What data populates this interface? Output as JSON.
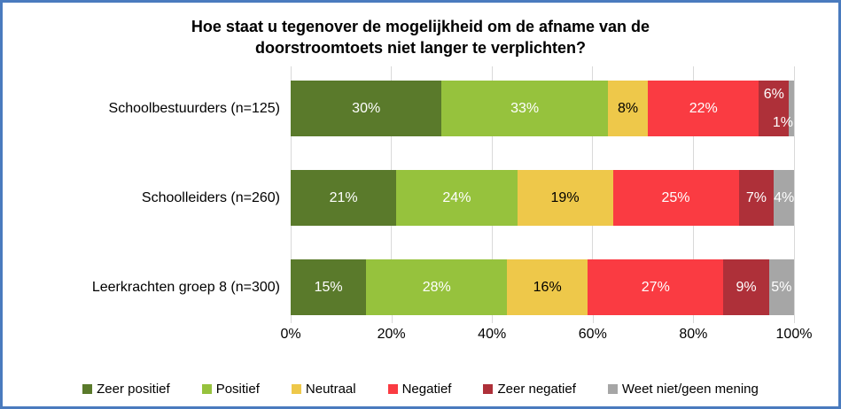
{
  "frame": {
    "border_color": "#4A7BBE",
    "background": "#FFFFFF"
  },
  "chart_data": {
    "type": "bar",
    "orientation": "horizontal",
    "stacked": true,
    "grid": true,
    "legend_position": "bottom",
    "title": "Hoe staat u tegenover de mogelijkheid om de afname van de doorstroomtoets niet langer te verplichten?",
    "categories": [
      "Schoolbestuurders (n=125)",
      "Schoolleiders (n=260)",
      "Leerkrachten groep 8 (n=300)"
    ],
    "series": [
      {
        "name": "Zeer positief",
        "color": "#5A7A2B",
        "label_color": "#FFFFFF",
        "values": [
          30,
          21,
          15
        ]
      },
      {
        "name": "Positief",
        "color": "#96C23D",
        "label_color": "#FFFFFF",
        "values": [
          33,
          24,
          28
        ]
      },
      {
        "name": "Neutraal",
        "color": "#EEC84A",
        "label_color": "#000000",
        "values": [
          8,
          19,
          16
        ]
      },
      {
        "name": "Negatief",
        "color": "#FA3B42",
        "label_color": "#FFFFFF",
        "values": [
          22,
          25,
          27
        ]
      },
      {
        "name": "Zeer negatief",
        "color": "#AE3039",
        "label_color": "#FFFFFF",
        "values": [
          6,
          7,
          9
        ]
      },
      {
        "name": "Weet niet/geen mening",
        "color": "#A6A6A6",
        "label_color": "#FFFFFF",
        "values": [
          1,
          4,
          5
        ]
      }
    ],
    "value_suffix": "%",
    "x_ticks": [
      "0%",
      "20%",
      "40%",
      "60%",
      "80%",
      "100%"
    ],
    "xlim": [
      0,
      100
    ],
    "gridline_color": "#D9D9D9"
  }
}
